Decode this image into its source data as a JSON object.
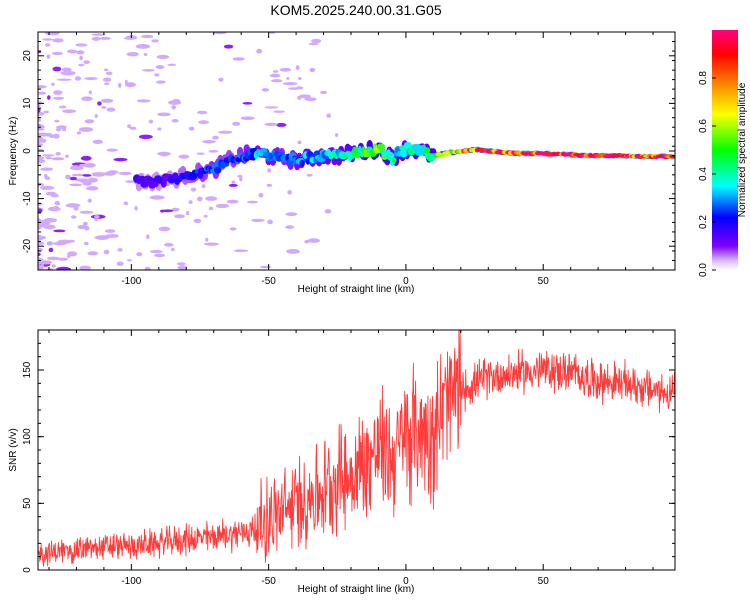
{
  "figure_title": "KOM5.2025.240.00.31.G05",
  "chart_data": [
    {
      "type": "heatmap",
      "title": "KOM5.2025.240.00.31.G05",
      "xlabel": "Height of straight line (km)",
      "ylabel": "Frequency (Hz)",
      "xlim": [
        -134,
        98
      ],
      "ylim": [
        -25,
        25
      ],
      "xticks": [
        -100,
        -50,
        0,
        50
      ],
      "xtick_labels": [
        "-100",
        "-50",
        "0",
        "50"
      ],
      "yticks": [
        -20,
        -10,
        0,
        10,
        20
      ],
      "ytick_labels": [
        "-20",
        "-10",
        "0",
        "10",
        "20"
      ],
      "colorbar": {
        "label": "Normalized spectral amplitude",
        "range": [
          0.0,
          1.0
        ],
        "ticks": [
          0.0,
          0.2,
          0.4,
          0.6,
          0.8
        ],
        "tick_labels": [
          "0.0",
          "0.2",
          "0.4",
          "0.6",
          "0.8"
        ],
        "colormap": "rainbow (white-violet-blue-cyan-green-yellow-orange-red-magenta)"
      },
      "ridge": {
        "description": "dominant spectral peak frequency vs height",
        "x": [
          -95,
          -85,
          -80,
          -75,
          -70,
          -65,
          -60,
          -55,
          -50,
          -45,
          -40,
          -35,
          -30,
          -25,
          -20,
          -15,
          -10,
          -5,
          0,
          5,
          10,
          15,
          20,
          25,
          30,
          40,
          50,
          60,
          70,
          80,
          98
        ],
        "y": [
          -6.5,
          -6.0,
          -5.0,
          -4.5,
          -4.0,
          -2.0,
          -1.0,
          -0.5,
          -1.0,
          -1.5,
          -2.0,
          -1.5,
          -1.0,
          -1.0,
          -0.5,
          0.0,
          0.5,
          -1.5,
          0.5,
          0.0,
          -1.0,
          -0.5,
          0.0,
          0.3,
          0.0,
          -0.5,
          -0.5,
          -0.8,
          -1.0,
          -1.0,
          -1.2
        ],
        "amplitude": [
          0.15,
          0.15,
          0.2,
          0.22,
          0.25,
          0.22,
          0.25,
          0.28,
          0.3,
          0.25,
          0.28,
          0.3,
          0.32,
          0.35,
          0.4,
          0.45,
          0.5,
          0.4,
          0.35,
          0.4,
          0.45,
          0.55,
          0.7,
          0.8,
          0.85,
          0.9,
          0.95,
          0.98,
          0.95,
          0.9,
          0.88
        ]
      }
    },
    {
      "type": "line",
      "xlabel": "Height of straight line (km)",
      "ylabel": "SNR (v/v)",
      "xlim": [
        -134,
        98
      ],
      "ylim": [
        0,
        180
      ],
      "xticks": [
        -100,
        -50,
        0,
        50
      ],
      "xtick_labels": [
        "-100",
        "-50",
        "0",
        "50"
      ],
      "yticks": [
        0,
        50,
        100,
        150
      ],
      "ytick_labels": [
        "0",
        "50",
        "100",
        "150"
      ],
      "series": [
        {
          "name": "SNR",
          "color": "#ff3c3c",
          "x": [
            -134,
            -120,
            -110,
            -100,
            -90,
            -80,
            -70,
            -60,
            -55,
            -50,
            -45,
            -40,
            -35,
            -30,
            -25,
            -20,
            -15,
            -10,
            -5,
            0,
            5,
            10,
            15,
            20,
            25,
            30,
            40,
            50,
            60,
            70,
            80,
            90,
            98
          ],
          "y": [
            12,
            15,
            17,
            18,
            20,
            23,
            25,
            28,
            30,
            40,
            42,
            50,
            55,
            60,
            70,
            70,
            80,
            90,
            85,
            100,
            105,
            105,
            125,
            135,
            140,
            145,
            148,
            150,
            148,
            142,
            140,
            135,
            132
          ]
        }
      ]
    }
  ]
}
